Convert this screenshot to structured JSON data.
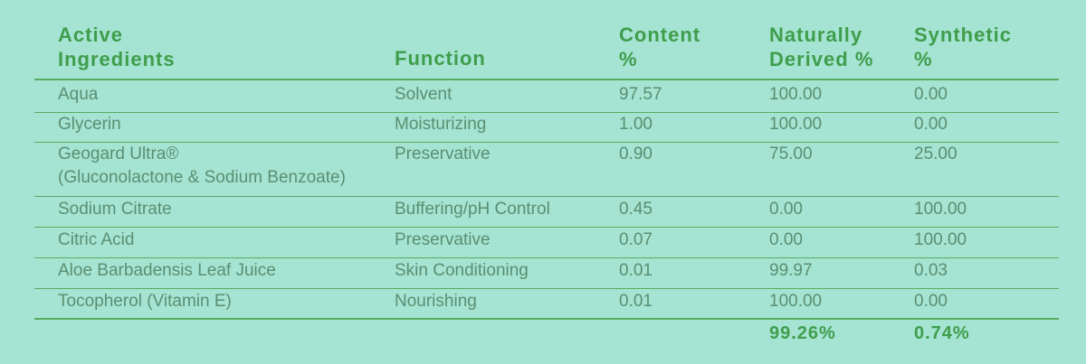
{
  "table": {
    "header": [
      [
        "Active",
        "Ingredients"
      ],
      [
        "Function"
      ],
      [
        "Content",
        "%"
      ],
      [
        "Naturally",
        "Derived %"
      ],
      [
        "Synthetic",
        "%"
      ]
    ],
    "rows": [
      [
        [
          "Aqua"
        ],
        "Solvent",
        "97.57",
        "100.00",
        "0.00"
      ],
      [
        [
          "Glycerin"
        ],
        "Moisturizing",
        "1.00",
        "100.00",
        "0.00"
      ],
      [
        [
          "Geogard Ultra®",
          "(Gluconolactone & Sodium Benzoate)"
        ],
        "Preservative",
        "0.90",
        "75.00",
        "25.00"
      ],
      [
        [
          "Sodium Citrate"
        ],
        "Buffering/pH Control",
        "0.45",
        "0.00",
        "100.00"
      ],
      [
        [
          "Citric Acid"
        ],
        "Preservative",
        "0.07",
        "0.00",
        "100.00"
      ],
      [
        [
          "Aloe Barbadensis Leaf Juice"
        ],
        "Skin Conditioning",
        "0.01",
        "99.97",
        "0.03"
      ],
      [
        [
          "Tocopherol (Vitamin E)"
        ],
        "Nourishing",
        "0.01",
        "100.00",
        "0.00"
      ]
    ],
    "totals": [
      "99.26%",
      "0.74%"
    ]
  }
}
